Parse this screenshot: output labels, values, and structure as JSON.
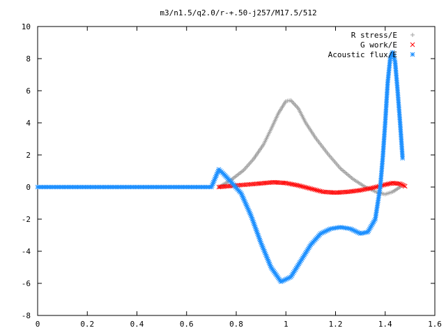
{
  "chart_data": {
    "type": "scatter",
    "title": "m3/n1.5/q2.0/r-+.50-j257/M17.5/512",
    "xlabel": "",
    "ylabel": "",
    "xlim": [
      0,
      1.6
    ],
    "ylim": [
      -8,
      10
    ],
    "x_ticks": [
      0,
      0.2,
      0.4,
      0.6,
      0.8,
      1,
      1.2,
      1.4,
      1.6
    ],
    "x_tick_labels": [
      "0",
      "0.2",
      "0.4",
      "0.6",
      "0.8",
      "1",
      "1.2",
      "1.4",
      "1.6"
    ],
    "y_ticks": [
      -8,
      -6,
      -4,
      -2,
      0,
      2,
      4,
      6,
      8,
      10
    ],
    "y_tick_labels": [
      "-8",
      "-6",
      "-4",
      "-2",
      "0",
      "2",
      "4",
      "6",
      "8",
      "10"
    ],
    "grid": false,
    "legend_position": "top-right",
    "series": [
      {
        "name": "R stress/E",
        "marker": "plus",
        "color": "#a0a0a0",
        "x": [
          0.73,
          0.78,
          0.83,
          0.87,
          0.91,
          0.94,
          0.97,
          1.0,
          1.02,
          1.05,
          1.08,
          1.12,
          1.17,
          1.22,
          1.27,
          1.32,
          1.37,
          1.4,
          1.43,
          1.46
        ],
        "y": [
          0.0,
          0.45,
          1.05,
          1.75,
          2.65,
          3.6,
          4.6,
          5.35,
          5.4,
          4.9,
          4.0,
          3.05,
          2.05,
          1.15,
          0.5,
          0.0,
          -0.35,
          -0.45,
          -0.3,
          0.0
        ]
      },
      {
        "name": "G work/E",
        "marker": "cross",
        "color": "#ff0000",
        "x": [
          0.73,
          0.8,
          0.88,
          0.95,
          1.0,
          1.05,
          1.1,
          1.15,
          1.2,
          1.25,
          1.3,
          1.35,
          1.4,
          1.43,
          1.46,
          1.48
        ],
        "y": [
          0.0,
          0.1,
          0.2,
          0.3,
          0.25,
          0.1,
          -0.1,
          -0.3,
          -0.35,
          -0.3,
          -0.2,
          -0.05,
          0.15,
          0.25,
          0.2,
          0.05
        ]
      },
      {
        "name": "Acoustic flux/E",
        "marker": "star",
        "color": "#1e90ff",
        "x": [
          0.0,
          0.1,
          0.2,
          0.3,
          0.4,
          0.5,
          0.6,
          0.7,
          0.73,
          0.75,
          0.78,
          0.82,
          0.86,
          0.9,
          0.94,
          0.98,
          1.02,
          1.06,
          1.1,
          1.14,
          1.18,
          1.22,
          1.26,
          1.3,
          1.33,
          1.36,
          1.38,
          1.39,
          1.4,
          1.41,
          1.42,
          1.43,
          1.44,
          1.45,
          1.46,
          1.47
        ],
        "y": [
          0.0,
          0.0,
          0.0,
          0.0,
          0.0,
          0.0,
          0.0,
          0.0,
          1.1,
          0.8,
          0.3,
          -0.4,
          -1.8,
          -3.5,
          -5.0,
          -5.9,
          -5.6,
          -4.6,
          -3.6,
          -2.9,
          -2.6,
          -2.5,
          -2.6,
          -2.9,
          -2.8,
          -2.0,
          0.0,
          1.8,
          4.0,
          6.5,
          8.0,
          8.4,
          7.8,
          6.0,
          4.0,
          1.8
        ]
      }
    ]
  }
}
